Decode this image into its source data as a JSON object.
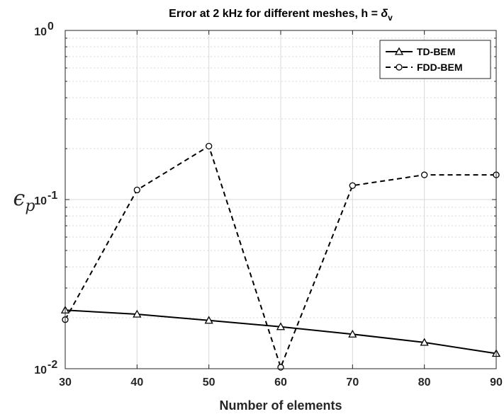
{
  "chart_data": {
    "type": "line",
    "title": "Error at 2 kHz for different meshes, h = ",
    "title_symbol": "δ",
    "title_subscript": "v",
    "xlabel": "Number of elements",
    "ylabel_symbol": "ϵ",
    "ylabel_subscript": "p",
    "x": [
      30,
      40,
      50,
      60,
      70,
      80,
      90
    ],
    "xlim": [
      30,
      90
    ],
    "ylim": [
      0.01,
      1
    ],
    "yscale": "log",
    "grid": true,
    "legend_position": "top-right",
    "xticks": [
      {
        "value": 30,
        "label": "30"
      },
      {
        "value": 40,
        "label": "40"
      },
      {
        "value": 50,
        "label": "50"
      },
      {
        "value": 60,
        "label": "60"
      },
      {
        "value": 70,
        "label": "70"
      },
      {
        "value": 80,
        "label": "80"
      },
      {
        "value": 90,
        "label": "90"
      }
    ],
    "yticks": [
      {
        "value": 0.01,
        "base": "10",
        "exp": "-2"
      },
      {
        "value": 0.1,
        "base": "10",
        "exp": "-1"
      },
      {
        "value": 1,
        "base": "10",
        "exp": "0"
      }
    ],
    "series": [
      {
        "name": "TD-BEM",
        "style": "solid",
        "marker": "triangle",
        "color": "#000000",
        "values": [
          0.0222,
          0.021,
          0.0193,
          0.0177,
          0.016,
          0.0143,
          0.0123
        ]
      },
      {
        "name": "FDD-BEM",
        "style": "dashed",
        "marker": "circle",
        "color": "#000000",
        "values": [
          0.0195,
          0.114,
          0.207,
          0.0102,
          0.121,
          0.14,
          0.14
        ]
      }
    ]
  }
}
